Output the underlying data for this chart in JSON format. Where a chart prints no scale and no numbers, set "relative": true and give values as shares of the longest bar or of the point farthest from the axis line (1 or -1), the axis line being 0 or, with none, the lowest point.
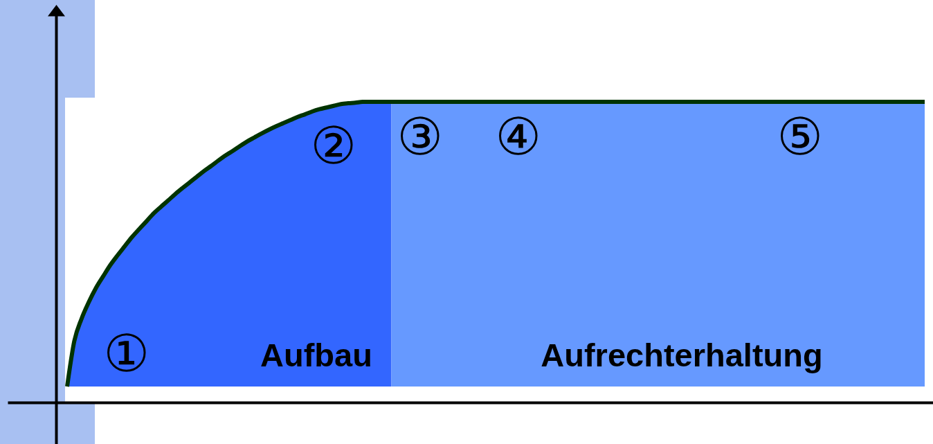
{
  "chart_data": {
    "type": "area",
    "relative": true,
    "categories": [
      null,
      null,
      null,
      null,
      null,
      null,
      null,
      null,
      null,
      null,
      null,
      null,
      null,
      null,
      null,
      null,
      null,
      null,
      null,
      null,
      null,
      null,
      null,
      null,
      null,
      null,
      null,
      null,
      null,
      null,
      null,
      null,
      null,
      null,
      null,
      null,
      null,
      null,
      null,
      null,
      null,
      null,
      null,
      null,
      null,
      null,
      null,
      null,
      null,
      null,
      null,
      null,
      null,
      null,
      null,
      null,
      null,
      null,
      null,
      null,
      null,
      null,
      null,
      null,
      null,
      null,
      null,
      null,
      null,
      null,
      null,
      null,
      null,
      null,
      null,
      null,
      null,
      null,
      null,
      null,
      null,
      null,
      null,
      null,
      null,
      null,
      null,
      null,
      null,
      null,
      null,
      null,
      null,
      null,
      null,
      null,
      null,
      null,
      null,
      null,
      null,
      null,
      null,
      null,
      null,
      null,
      null,
      null,
      null,
      null,
      null,
      null,
      null,
      null,
      null,
      null,
      null,
      null,
      null,
      null
    ],
    "annotations": [
      "①",
      "②",
      "③",
      "④",
      "⑤",
      "Aufbau",
      "Aufrechterhaltung"
    ],
    "series": [
      {
        "color": "#3366ff",
        "values": [
          0,
          0.16,
          0.238,
          0.296,
          0.346,
          0.387,
          0.427,
          0.461,
          0.493,
          0.525,
          0.553,
          0.58,
          0.608,
          0.631,
          0.653,
          0.676,
          0.697,
          0.717,
          0.737,
          0.757,
          0.775,
          0.794,
          0.812,
          0.828,
          0.845,
          0.861,
          0.875,
          0.889,
          0.902,
          0.914,
          0.925,
          0.936,
          0.947,
          0.956,
          0.966,
          0.974,
          0.98,
          0.986,
          0.992,
          0.995,
          0.997,
          1,
          1,
          1,
          1,
          1,
          null,
          null,
          null,
          null,
          null,
          null,
          null,
          null,
          null,
          null,
          null,
          null,
          null,
          null,
          null,
          null,
          null,
          null,
          null,
          null,
          null,
          null,
          null,
          null,
          null,
          null,
          null,
          null,
          null,
          null,
          null,
          null,
          null,
          null,
          null,
          null,
          null,
          null,
          null,
          null,
          null,
          null,
          null,
          null,
          null,
          null,
          null,
          null,
          null,
          null,
          null,
          null,
          null,
          null,
          null,
          null,
          null,
          null,
          null,
          null,
          null,
          null,
          null,
          null,
          null,
          null,
          null,
          null,
          null,
          null,
          null,
          null,
          null,
          null
        ]
      },
      {
        "color": "#6699ff",
        "values": [
          null,
          null,
          null,
          null,
          null,
          null,
          null,
          null,
          null,
          null,
          null,
          null,
          null,
          null,
          null,
          null,
          null,
          null,
          null,
          null,
          null,
          null,
          null,
          null,
          null,
          null,
          null,
          null,
          null,
          null,
          null,
          null,
          null,
          null,
          null,
          null,
          null,
          null,
          null,
          null,
          null,
          null,
          null,
          null,
          null,
          1,
          1,
          1,
          1,
          1,
          1,
          1,
          1,
          1,
          1,
          1,
          1,
          1,
          1,
          1,
          1,
          1,
          1,
          1,
          1,
          1,
          1,
          1,
          1,
          1,
          1,
          1,
          1,
          1,
          1,
          1,
          1,
          1,
          1,
          1,
          1,
          1,
          1,
          1,
          1,
          1,
          1,
          1,
          1,
          1,
          1,
          1,
          1,
          1,
          1,
          1,
          1,
          1,
          1,
          1,
          1,
          1,
          1,
          1,
          1,
          1,
          1,
          1,
          1,
          1,
          1,
          1,
          1,
          1,
          1,
          1,
          1,
          1,
          1,
          1
        ]
      },
      {
        "type": "line",
        "color": "#003300",
        "values": [
          0,
          0.16,
          0.238,
          0.296,
          0.346,
          0.387,
          0.427,
          0.461,
          0.493,
          0.525,
          0.553,
          0.58,
          0.608,
          0.631,
          0.653,
          0.676,
          0.697,
          0.717,
          0.737,
          0.757,
          0.775,
          0.794,
          0.812,
          0.828,
          0.845,
          0.861,
          0.875,
          0.889,
          0.902,
          0.914,
          0.925,
          0.936,
          0.947,
          0.956,
          0.966,
          0.974,
          0.98,
          0.986,
          0.992,
          0.995,
          0.997,
          1,
          1,
          1,
          1,
          1,
          1,
          1,
          1,
          1,
          1,
          1,
          1,
          1,
          1,
          1,
          1,
          1,
          1,
          1,
          1,
          1,
          1,
          1,
          1,
          1,
          1,
          1,
          1,
          1,
          1,
          1,
          1,
          1,
          1,
          1,
          1,
          1,
          1,
          1,
          1,
          1,
          1,
          1,
          1,
          1,
          1,
          1,
          1,
          1,
          1,
          1,
          1,
          1,
          1,
          1,
          1,
          1,
          1,
          1,
          1,
          1,
          1,
          1,
          1,
          1,
          1,
          1,
          1,
          1,
          1,
          1,
          1,
          1,
          1,
          1,
          1,
          1,
          1,
          1
        ]
      }
    ]
  }
}
